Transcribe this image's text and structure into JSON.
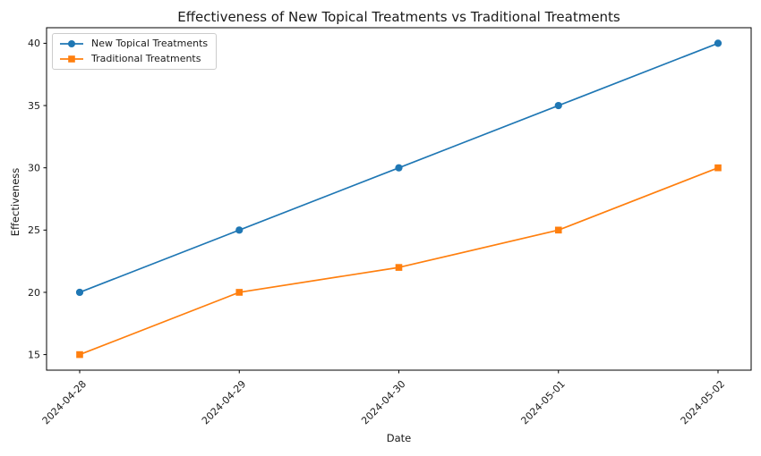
{
  "chart_data": {
    "type": "line",
    "title": "Effectiveness of New Topical Treatments vs Traditional Treatments",
    "xlabel": "Date",
    "ylabel": "Effectiveness",
    "categories": [
      "2024-04-28",
      "2024-04-29",
      "2024-04-30",
      "2024-05-01",
      "2024-05-02"
    ],
    "series": [
      {
        "name": "New Topical Treatments",
        "values": [
          20,
          25,
          30,
          35,
          40
        ],
        "color": "#1f77b4",
        "marker": "circle"
      },
      {
        "name": "Traditional Treatments",
        "values": [
          15,
          20,
          22,
          25,
          30
        ],
        "color": "#ff7f0e",
        "marker": "square"
      }
    ],
    "yticks": [
      15,
      20,
      25,
      30,
      35,
      40
    ],
    "ylim": [
      13.75,
      41.25
    ],
    "x_tick_rotation": 45,
    "legend_position": "upper left",
    "grid": false,
    "axis_color": "#000000",
    "text_color": "#1a1a1a"
  }
}
